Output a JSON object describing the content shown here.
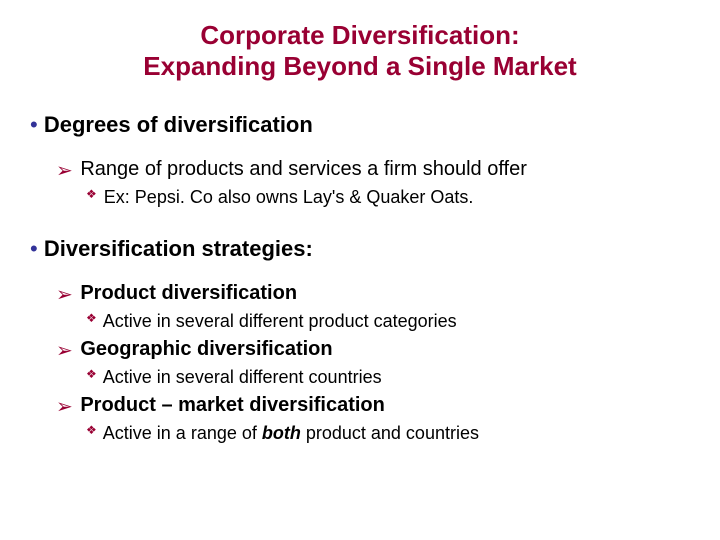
{
  "colors": {
    "title": "#990033",
    "bullet_l1": "#333399",
    "bullet_l2": "#990033",
    "bullet_l3": "#990033",
    "text": "#000000",
    "background": "#ffffff"
  },
  "fontsizes": {
    "title": 26,
    "l1": 22,
    "l2": 20,
    "l3": 18
  },
  "glyphs": {
    "l1": "•",
    "l2": "➢",
    "l3": "❖"
  },
  "title": {
    "line1": "Corporate Diversification:",
    "line2": "Expanding Beyond a Single Market"
  },
  "sections": [
    {
      "heading": "Degrees of diversification",
      "subs": [
        {
          "text": "Range of products and services a firm should offer",
          "bold": false,
          "subs": [
            {
              "prefix": "Ex:",
              "text": "  Pepsi. Co also owns Lay's & Quaker Oats."
            }
          ]
        }
      ]
    },
    {
      "heading": "Diversification strategies:",
      "subs": [
        {
          "text": "Product diversification",
          "bold": true,
          "subs": [
            {
              "prefix": "",
              "text": "Active in several different product categories"
            }
          ]
        },
        {
          "text": "Geographic diversification",
          "bold": true,
          "subs": [
            {
              "prefix": "",
              "text": "Active in several different countries"
            }
          ]
        },
        {
          "text": "Product – market diversification",
          "bold": true,
          "subs": [
            {
              "prefix": "",
              "text_html": "Active in a range of <span class=\"ib\">both</span> product and countries"
            }
          ]
        }
      ]
    }
  ]
}
